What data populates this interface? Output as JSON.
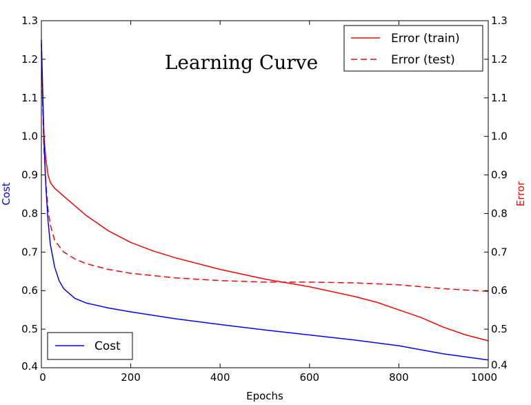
{
  "chart_data": {
    "type": "line",
    "title": "Learning Curve",
    "xlabel": "Epochs",
    "xlim": [
      0,
      1000
    ],
    "x_ticks": [
      0,
      200,
      400,
      600,
      800,
      1000
    ],
    "y_left": {
      "label": "Cost",
      "color": "#0000ff",
      "lim": [
        0.4,
        1.3
      ]
    },
    "y_right": {
      "label": "Error",
      "color": "#ff0000",
      "lim": [
        0.4,
        1.3
      ]
    },
    "y_ticks": [
      0.4,
      0.5,
      0.6,
      0.7,
      0.8,
      0.9,
      1.0,
      1.1,
      1.2,
      1.3
    ],
    "grid": false,
    "legend_upper": {
      "placement": "top-right",
      "entries": [
        "Error (train)",
        "Error (test)"
      ]
    },
    "legend_lower": {
      "placement": "bottom-left",
      "entries": [
        "Cost"
      ]
    },
    "series": [
      {
        "name": "Error (train)",
        "axis": "right",
        "color": "#ff0000",
        "style": "solid",
        "x": [
          0,
          3,
          6,
          10,
          15,
          20,
          30,
          50,
          75,
          100,
          150,
          200,
          250,
          300,
          400,
          500,
          600,
          700,
          750,
          800,
          850,
          900,
          950,
          1000
        ],
        "y": [
          1.24,
          1.1,
          1.0,
          0.94,
          0.9,
          0.88,
          0.865,
          0.845,
          0.82,
          0.795,
          0.755,
          0.725,
          0.703,
          0.685,
          0.655,
          0.63,
          0.61,
          0.585,
          0.57,
          0.55,
          0.53,
          0.505,
          0.485,
          0.47
        ]
      },
      {
        "name": "Error (test)",
        "axis": "right",
        "color": "#ff0000",
        "style": "dashed",
        "x": [
          0,
          3,
          6,
          10,
          15,
          20,
          30,
          40,
          50,
          75,
          100,
          150,
          200,
          300,
          400,
          500,
          600,
          700,
          800,
          900,
          1000
        ],
        "y": [
          1.22,
          1.08,
          0.96,
          0.88,
          0.81,
          0.77,
          0.73,
          0.715,
          0.7,
          0.682,
          0.67,
          0.655,
          0.645,
          0.633,
          0.626,
          0.622,
          0.622,
          0.62,
          0.615,
          0.605,
          0.598
        ]
      },
      {
        "name": "Cost",
        "axis": "left",
        "color": "#0000ff",
        "style": "solid",
        "x": [
          0,
          3,
          6,
          10,
          15,
          20,
          30,
          40,
          50,
          75,
          100,
          150,
          200,
          300,
          400,
          500,
          600,
          700,
          800,
          900,
          1000
        ],
        "y": [
          1.25,
          1.12,
          0.98,
          0.87,
          0.78,
          0.72,
          0.66,
          0.625,
          0.605,
          0.58,
          0.568,
          0.555,
          0.545,
          0.527,
          0.512,
          0.498,
          0.485,
          0.472,
          0.457,
          0.436,
          0.42
        ]
      }
    ]
  }
}
